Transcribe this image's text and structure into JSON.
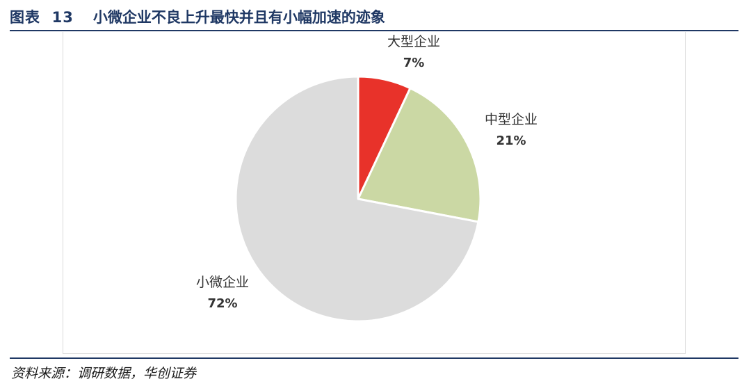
{
  "header": {
    "figure_label": "图表  13",
    "title": "小微企业不良上升最快并且有小幅加速的迹象"
  },
  "source": {
    "text": "资料来源：调研数据，华创证券"
  },
  "colors": {
    "header_text": "#1f3864",
    "rules": "#1f3864"
  },
  "chart_data": {
    "type": "pie",
    "title": "",
    "start_angle_deg": 0,
    "direction": "clockwise",
    "slices": [
      {
        "label": "大型企业",
        "value": 7,
        "display": "7%",
        "color": "#e8322a"
      },
      {
        "label": "中型企业",
        "value": 21,
        "display": "21%",
        "color": "#cbd8a4"
      },
      {
        "label": "小微企业",
        "value": 72,
        "display": "72%",
        "color": "#dcdcdc"
      }
    ]
  }
}
